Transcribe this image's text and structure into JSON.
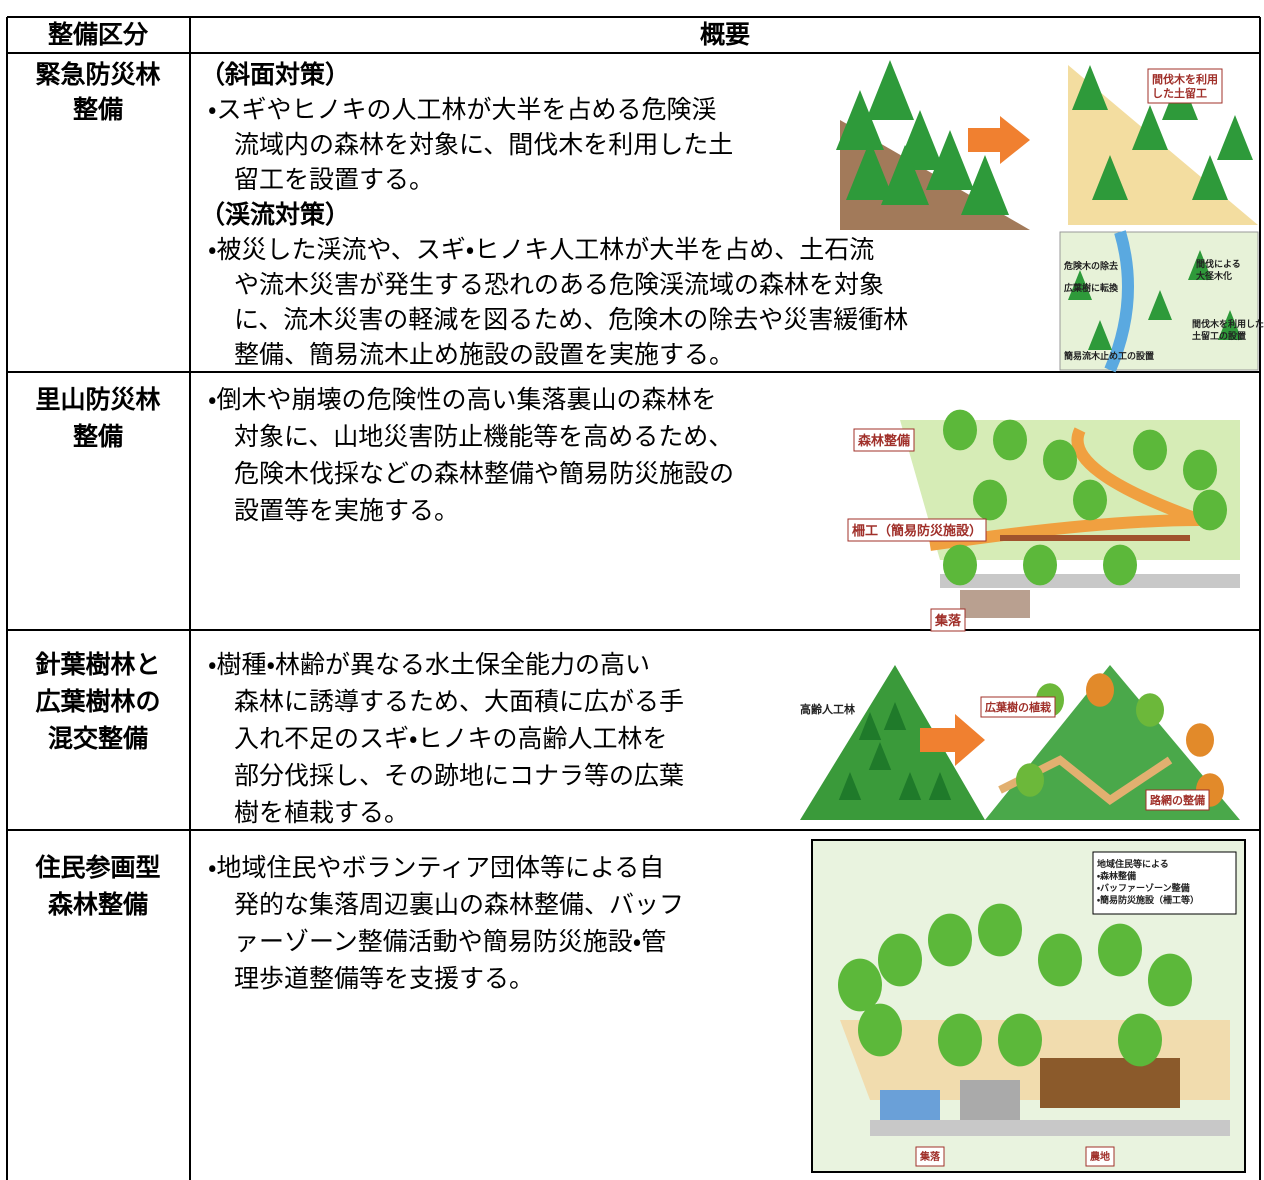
{
  "table": {
    "header": [
      "整備区分",
      "概要"
    ],
    "rows": [
      {
        "category": [
          "緊急防災林",
          "整備"
        ],
        "content": [
          {
            "heading": "（斜面対策）",
            "lines": [
              "・スギやヒノキの人工林が大半を占める危険渓",
              "流域内の森林を対象に、間伐木を利用した土",
              "留工を設置する。"
            ]
          },
          {
            "heading": "（渓流対策）",
            "lines": [
              "・被災した渓流や、スギ・ヒノキ人工林が大半を占め、土石流",
              "や流木災害が発生する恐れのある危険渓流域の森林を対象",
              "に、流木災害の軽減を図るため、危険木の除去や災害緩衝林",
              "整備、簡易流木止め施設の設置を実施する。"
            ]
          }
        ],
        "figure_labels": [
          [
            "間伐木を利用",
            "した土留工"
          ],
          [
            "間伐による",
            "大径木化"
          ],
          [
            "危険木の除去"
          ],
          [
            "広葉樹に転換"
          ],
          [
            "間伐木を利用した",
            "土留工の設置"
          ],
          [
            "簡易流木止め工の設置"
          ]
        ]
      },
      {
        "category": [
          "里山防災林",
          "整備"
        ],
        "content": [
          {
            "lines": [
              "・倒木や崩壊の危険性の高い集落裏山の森林を",
              "対象に、山地災害防止機能等を高めるため、",
              "危険木伐採などの森林整備や簡易防災施設の",
              "設置等を実施する。"
            ]
          }
        ],
        "figure_labels": [
          [
            "森林整備"
          ],
          [
            "柵工（簡易防災施設）"
          ],
          [
            "集落"
          ]
        ]
      },
      {
        "category": [
          "針葉樹林と",
          "広葉樹林の",
          "混交整備"
        ],
        "content": [
          {
            "lines": [
              "・樹種・林齢が異なる水土保全能力の高い",
              "森林に誘導するため、大面積に広がる手",
              "入れ不足のスギ・ヒノキの高齢人工林を",
              "部分伐採し、その跡地にコナラ等の広葉",
              "樹を植栽する。"
            ]
          }
        ],
        "figure_labels": [
          [
            "高齢人工林"
          ],
          [
            "広葉樹の植栽"
          ],
          [
            "路網の整備"
          ]
        ]
      },
      {
        "category": [
          "住民参画型",
          "森林整備"
        ],
        "content": [
          {
            "lines": [
              "・地域住民やボランティア団体等による自",
              "発的な集落周辺裏山の森林整備、バッフ",
              "ァーゾーン整備活動や簡易防災施設・管",
              "理歩道整備等を支援する。"
            ]
          }
        ],
        "figure_labels": [
          [
            "地域住民等による",
            "・森林整備",
            "・バッファーゾーン整備",
            "・簡易防災施設（柵工等）"
          ],
          [
            "集落"
          ],
          [
            "農地"
          ]
        ]
      }
    ]
  }
}
